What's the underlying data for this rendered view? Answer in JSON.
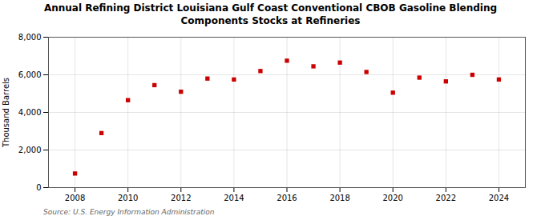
{
  "chart_data": {
    "type": "scatter",
    "title": "Annual Refining District Louisiana Gulf Coast Conventional CBOB Gasoline Blending\nComponents Stocks at Refineries",
    "ylabel": "Thousand Barrels",
    "source": "Source: U.S. Energy Information Administration",
    "x": [
      2008,
      2009,
      2010,
      2011,
      2012,
      2013,
      2014,
      2015,
      2016,
      2017,
      2018,
      2019,
      2020,
      2021,
      2022,
      2023,
      2024
    ],
    "values": [
      750,
      2900,
      4650,
      5450,
      5100,
      5800,
      5750,
      6200,
      6750,
      6450,
      6650,
      6150,
      5050,
      5850,
      5650,
      6000,
      5750
    ],
    "color": "#cc0000",
    "marker": "square",
    "xlim": [
      2007,
      2025
    ],
    "xticks": [
      2008,
      2010,
      2012,
      2014,
      2016,
      2018,
      2020,
      2022,
      2024
    ],
    "ylim": [
      0,
      8000
    ],
    "yticks": [
      0,
      {
        "value": 2000,
        "label": "2,000"
      },
      {
        "value": 4000,
        "label": "4,000"
      },
      {
        "value": 6000,
        "label": "6,000"
      },
      {
        "value": 8000,
        "label": "8,000"
      }
    ],
    "grid": true
  }
}
